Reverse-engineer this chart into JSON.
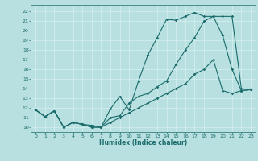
{
  "title": "",
  "xlabel": "Humidex (Indice chaleur)",
  "ylabel": "",
  "xlim": [
    -0.5,
    23.5
  ],
  "ylim": [
    9.5,
    22.7
  ],
  "bg_color": "#b8e0e0",
  "grid_color": "#d8f0f0",
  "line_color": "#1a6b6b",
  "line1_x": [
    0,
    1,
    2,
    3,
    4,
    5,
    6,
    7,
    8,
    9,
    10,
    11,
    12,
    13,
    14,
    15,
    16,
    17,
    18,
    19,
    20,
    21,
    22,
    23
  ],
  "line1_y": [
    11.8,
    11.1,
    11.7,
    10.0,
    10.5,
    10.3,
    10.0,
    10.0,
    11.9,
    13.2,
    11.8,
    14.8,
    17.5,
    19.3,
    21.2,
    21.1,
    21.5,
    21.9,
    21.5,
    21.5,
    19.5,
    16.0,
    13.8,
    13.9
  ],
  "line2_x": [
    0,
    1,
    2,
    3,
    4,
    5,
    6,
    7,
    8,
    9,
    10,
    11,
    12,
    13,
    14,
    15,
    16,
    17,
    18,
    19,
    20,
    21,
    22,
    23
  ],
  "line2_y": [
    11.8,
    11.1,
    11.7,
    10.0,
    10.5,
    10.3,
    10.2,
    10.0,
    11.0,
    11.2,
    12.5,
    13.2,
    13.5,
    14.2,
    14.8,
    16.5,
    18.0,
    19.3,
    21.0,
    21.5,
    21.5,
    21.5,
    14.0,
    13.9
  ],
  "line3_x": [
    0,
    1,
    2,
    3,
    4,
    5,
    6,
    7,
    8,
    9,
    10,
    11,
    12,
    13,
    14,
    15,
    16,
    17,
    18,
    19,
    20,
    21,
    22,
    23
  ],
  "line3_y": [
    11.8,
    11.1,
    11.7,
    10.0,
    10.5,
    10.3,
    10.0,
    10.0,
    10.5,
    11.0,
    11.5,
    12.0,
    12.5,
    13.0,
    13.5,
    14.0,
    14.5,
    15.5,
    16.0,
    17.0,
    13.8,
    13.5,
    13.8,
    13.9
  ],
  "xticks": [
    0,
    1,
    2,
    3,
    4,
    5,
    6,
    7,
    8,
    9,
    10,
    11,
    12,
    13,
    14,
    15,
    16,
    17,
    18,
    19,
    20,
    21,
    22,
    23
  ],
  "yticks": [
    10,
    11,
    12,
    13,
    14,
    15,
    16,
    17,
    18,
    19,
    20,
    21,
    22
  ]
}
